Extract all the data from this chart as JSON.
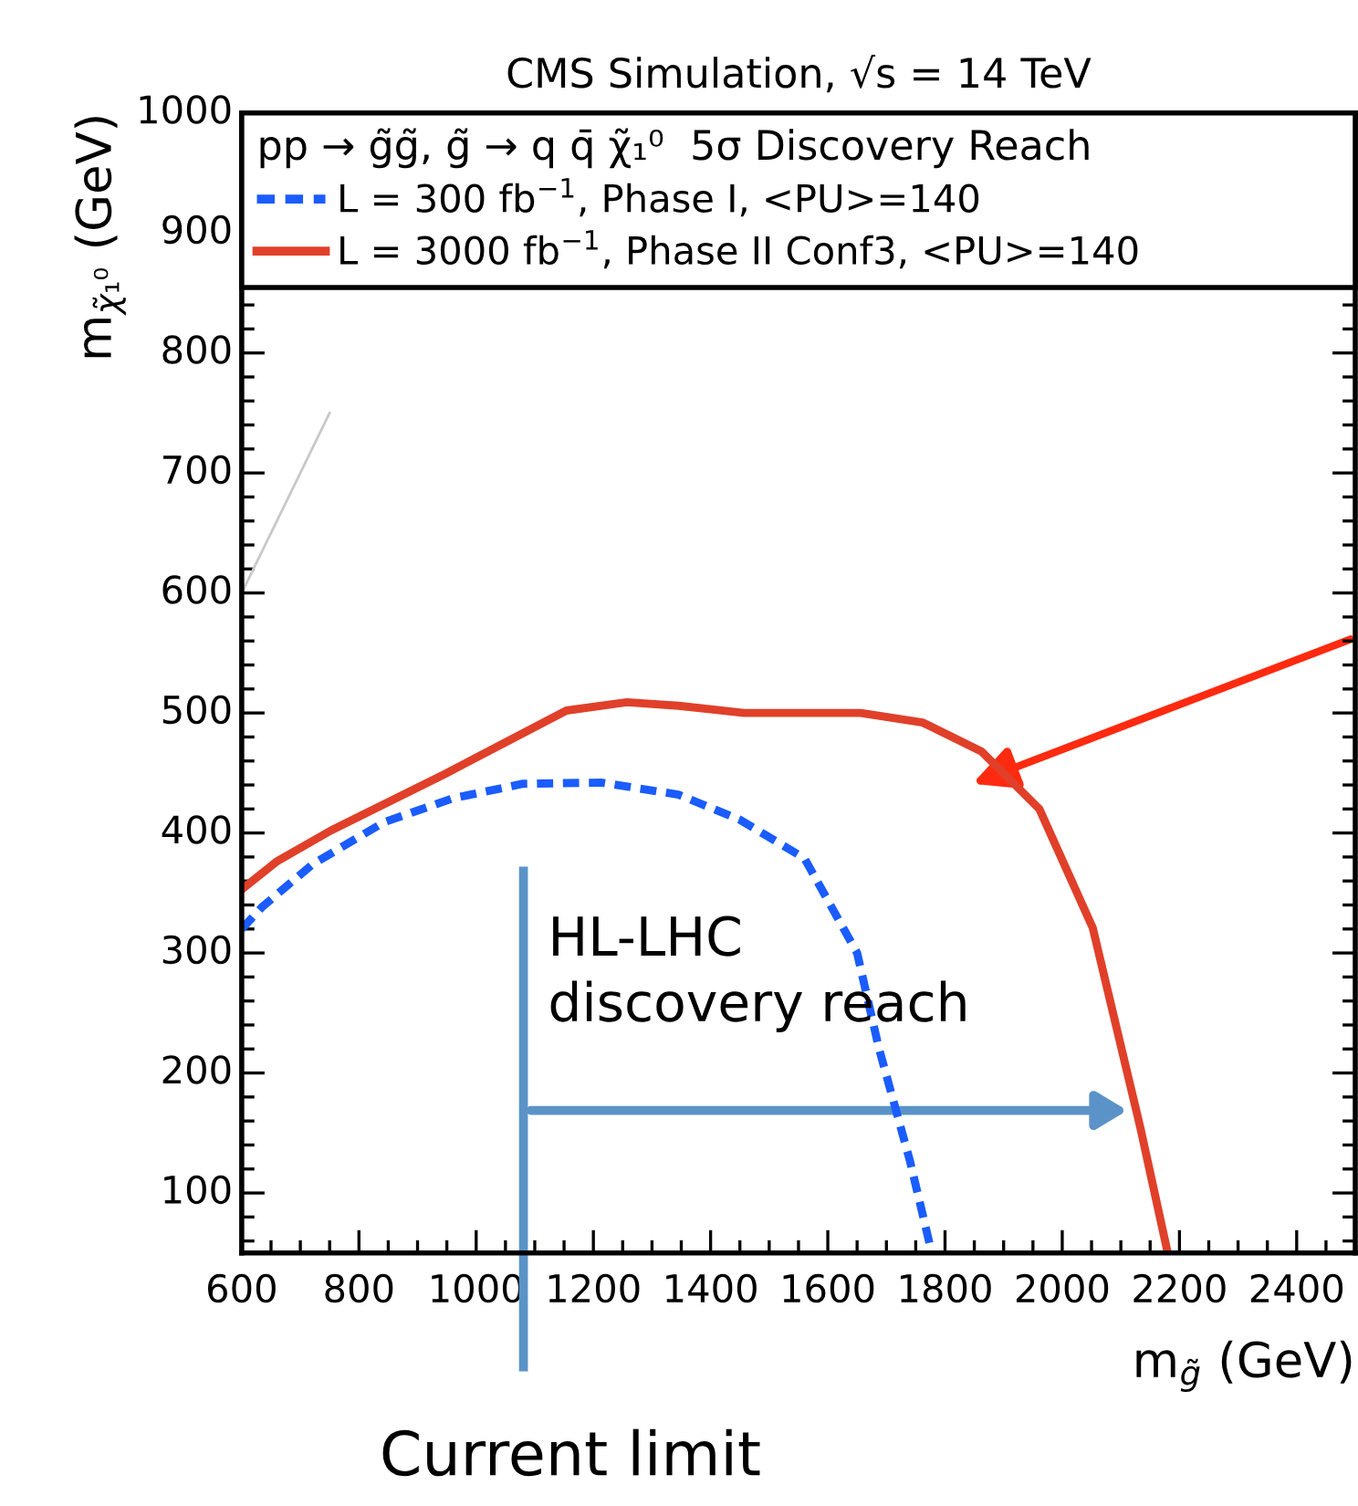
{
  "chart_data": {
    "type": "line",
    "title": "CMS Simulation, √s = 14 TeV",
    "xlabel": "m$_{g̃}$ (GeV)",
    "ylabel": "m$_{χ̃₁⁰}$ (GeV)",
    "legend_title": "pp → g̃g̃, g̃ → q q̄ χ̃₁⁰  5σ Discovery Reach",
    "xlim": [
      600,
      2500
    ],
    "xticks": [
      600,
      800,
      1000,
      1200,
      1400,
      1600,
      1800,
      2000,
      2200,
      2400
    ],
    "ylim": [
      50,
      1000
    ],
    "yticks": [
      100,
      200,
      300,
      400,
      500,
      600,
      700,
      800,
      900,
      1000
    ],
    "grid": false,
    "legend": "top",
    "marker": "none",
    "series": [
      {
        "name": "L = 300 fb$^{−1}$, Phase I, <PU>=140",
        "color": "#1a5cff",
        "line_style": "dashed",
        "x": [
          600,
          634,
          721,
          843,
          961,
          1080,
          1213,
          1345,
          1450,
          1560,
          1650,
          1687,
          1740,
          1775
        ],
        "values": [
          320,
          338,
          374,
          409,
          429,
          441,
          442,
          432,
          411,
          379,
          300,
          221,
          127,
          55
        ]
      },
      {
        "name": "L = 3000 fb$^{−1}$, Phase II Conf3, <PU>=140",
        "color": "#e0402a",
        "line_style": "solid",
        "x": [
          600,
          659,
          752,
          946,
          1154,
          1257,
          1345,
          1457,
          1656,
          1762,
          1862,
          1961,
          2052,
          2133,
          2180
        ],
        "values": [
          353,
          376,
          402,
          449,
          502,
          509,
          506,
          500,
          500,
          492,
          468,
          420,
          321,
          155,
          50
        ]
      },
      {
        "color": "#c8c8c8",
        "line_style": "solid",
        "x": [
          600,
          750
        ],
        "values": [
          600,
          750
        ]
      }
    ],
    "annotations": [
      "HL-LHC\ndiscovery reach",
      "Current limit"
    ]
  }
}
